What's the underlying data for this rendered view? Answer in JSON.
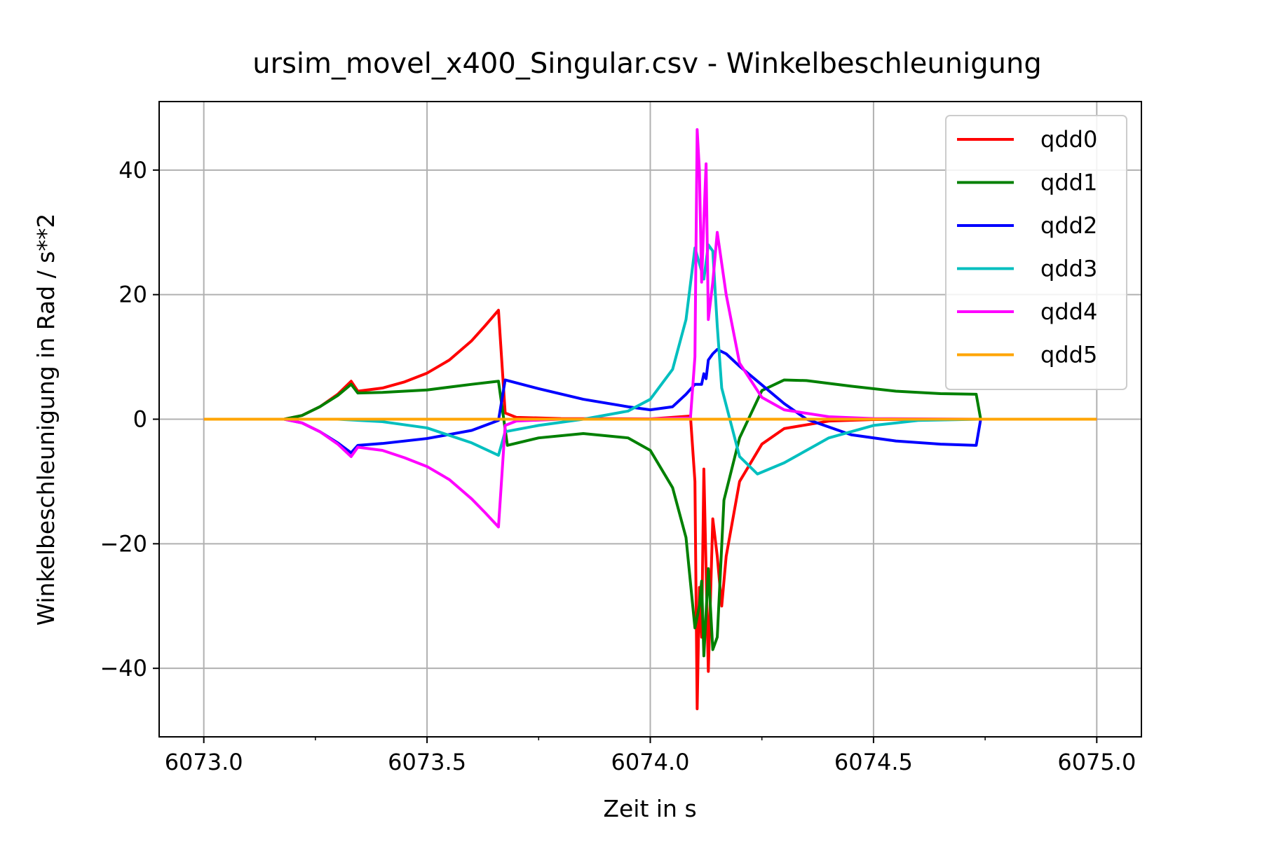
{
  "chart_data": {
    "type": "line",
    "title": "ursim_movel_x400_Singular.csv - Winkelbeschleunigung",
    "xlabel": "Zeit in s",
    "ylabel": "Winkelbeschleunigung in Rad / s**2",
    "xlim": [
      6072.9,
      6075.1
    ],
    "ylim": [
      -51,
      51
    ],
    "x_ticks": [
      6073.0,
      6073.5,
      6074.0,
      6074.5,
      6075.0
    ],
    "x_tick_labels": [
      "6073.0",
      "6073.5",
      "6074.0",
      "6074.5",
      "6075.0"
    ],
    "x_minor_ticks": [
      6073.25,
      6073.75,
      6074.25,
      6074.75
    ],
    "y_ticks": [
      -40,
      -20,
      0,
      20,
      40
    ],
    "y_tick_labels": [
      "−40",
      "−20",
      "0",
      "20",
      "40"
    ],
    "grid": true,
    "legend_position": "top-right",
    "series": [
      {
        "name": "qdd0",
        "color": "#ff0000",
        "points": [
          [
            6073.0,
            0
          ],
          [
            6073.18,
            0
          ],
          [
            6073.22,
            0.6
          ],
          [
            6073.26,
            2
          ],
          [
            6073.3,
            4
          ],
          [
            6073.33,
            6.1
          ],
          [
            6073.345,
            4.5
          ],
          [
            6073.4,
            5
          ],
          [
            6073.45,
            6
          ],
          [
            6073.5,
            7.4
          ],
          [
            6073.55,
            9.5
          ],
          [
            6073.6,
            12.6
          ],
          [
            6073.63,
            15
          ],
          [
            6073.66,
            17.5
          ],
          [
            6073.675,
            1
          ],
          [
            6073.7,
            0.3
          ],
          [
            6073.8,
            0.1
          ],
          [
            6074.0,
            0.05
          ],
          [
            6074.09,
            0.5
          ],
          [
            6074.1,
            -10
          ],
          [
            6074.105,
            -46.5
          ],
          [
            6074.11,
            -27
          ],
          [
            6074.115,
            -35
          ],
          [
            6074.12,
            -8
          ],
          [
            6074.13,
            -40.5
          ],
          [
            6074.14,
            -16
          ],
          [
            6074.15,
            -22
          ],
          [
            6074.16,
            -30
          ],
          [
            6074.17,
            -22
          ],
          [
            6074.2,
            -10
          ],
          [
            6074.25,
            -4
          ],
          [
            6074.3,
            -1.5
          ],
          [
            6074.4,
            -0.3
          ],
          [
            6074.5,
            -0.05
          ],
          [
            6074.74,
            0
          ],
          [
            6075.0,
            0
          ]
        ]
      },
      {
        "name": "qdd1",
        "color": "#008000",
        "points": [
          [
            6073.0,
            0
          ],
          [
            6073.18,
            0
          ],
          [
            6073.22,
            0.6
          ],
          [
            6073.26,
            2
          ],
          [
            6073.3,
            3.8
          ],
          [
            6073.33,
            5.6
          ],
          [
            6073.345,
            4.2
          ],
          [
            6073.4,
            4.3
          ],
          [
            6073.5,
            4.7
          ],
          [
            6073.6,
            5.6
          ],
          [
            6073.66,
            6.1
          ],
          [
            6073.68,
            -4.2
          ],
          [
            6073.75,
            -3
          ],
          [
            6073.85,
            -2.3
          ],
          [
            6073.95,
            -3
          ],
          [
            6074.0,
            -5
          ],
          [
            6074.05,
            -11
          ],
          [
            6074.08,
            -19
          ],
          [
            6074.1,
            -33.5
          ],
          [
            6074.11,
            -30
          ],
          [
            6074.115,
            -26
          ],
          [
            6074.12,
            -38
          ],
          [
            6074.13,
            -24
          ],
          [
            6074.14,
            -37
          ],
          [
            6074.15,
            -35
          ],
          [
            6074.165,
            -13
          ],
          [
            6074.2,
            -3
          ],
          [
            6074.25,
            4.6
          ],
          [
            6074.3,
            6.3
          ],
          [
            6074.35,
            6.2
          ],
          [
            6074.45,
            5.3
          ],
          [
            6074.55,
            4.5
          ],
          [
            6074.65,
            4.1
          ],
          [
            6074.73,
            4.0
          ],
          [
            6074.74,
            0
          ],
          [
            6075.0,
            0
          ]
        ]
      },
      {
        "name": "qdd2",
        "color": "#0000ff",
        "points": [
          [
            6073.0,
            0
          ],
          [
            6073.18,
            0
          ],
          [
            6073.22,
            -0.6
          ],
          [
            6073.26,
            -2
          ],
          [
            6073.3,
            -3.8
          ],
          [
            6073.33,
            -5.4
          ],
          [
            6073.345,
            -4.2
          ],
          [
            6073.4,
            -3.9
          ],
          [
            6073.5,
            -3.1
          ],
          [
            6073.6,
            -1.8
          ],
          [
            6073.66,
            -0.2
          ],
          [
            6073.675,
            6.3
          ],
          [
            6073.75,
            4.9
          ],
          [
            6073.85,
            3.2
          ],
          [
            6073.95,
            2
          ],
          [
            6074.0,
            1.5
          ],
          [
            6074.05,
            2
          ],
          [
            6074.08,
            4
          ],
          [
            6074.1,
            5.6
          ],
          [
            6074.115,
            5.6
          ],
          [
            6074.12,
            7.3
          ],
          [
            6074.125,
            6.5
          ],
          [
            6074.13,
            9.5
          ],
          [
            6074.14,
            10.5
          ],
          [
            6074.15,
            11.2
          ],
          [
            6074.17,
            10.5
          ],
          [
            6074.2,
            8.5
          ],
          [
            6074.25,
            5.5
          ],
          [
            6074.3,
            2.5
          ],
          [
            6074.35,
            0
          ],
          [
            6074.45,
            -2.5
          ],
          [
            6074.55,
            -3.5
          ],
          [
            6074.65,
            -4
          ],
          [
            6074.73,
            -4.2
          ],
          [
            6074.74,
            0
          ],
          [
            6075.0,
            0
          ]
        ]
      },
      {
        "name": "qdd3",
        "color": "#00bfbf",
        "points": [
          [
            6073.0,
            0
          ],
          [
            6073.3,
            0
          ],
          [
            6073.4,
            -0.4
          ],
          [
            6073.5,
            -1.4
          ],
          [
            6073.6,
            -3.8
          ],
          [
            6073.66,
            -5.8
          ],
          [
            6073.675,
            -2
          ],
          [
            6073.75,
            -1
          ],
          [
            6073.85,
            0
          ],
          [
            6073.95,
            1.3
          ],
          [
            6074.0,
            3.2
          ],
          [
            6074.05,
            8
          ],
          [
            6074.08,
            16
          ],
          [
            6074.1,
            27.5
          ],
          [
            6074.11,
            25
          ],
          [
            6074.12,
            22.5
          ],
          [
            6074.13,
            28
          ],
          [
            6074.14,
            27
          ],
          [
            6074.15,
            15
          ],
          [
            6074.16,
            5
          ],
          [
            6074.2,
            -6
          ],
          [
            6074.24,
            -8.8
          ],
          [
            6074.3,
            -7
          ],
          [
            6074.4,
            -3
          ],
          [
            6074.5,
            -1
          ],
          [
            6074.6,
            -0.2
          ],
          [
            6074.74,
            0
          ],
          [
            6075.0,
            0
          ]
        ]
      },
      {
        "name": "qdd4",
        "color": "#ff00ff",
        "points": [
          [
            6073.0,
            0
          ],
          [
            6073.18,
            0
          ],
          [
            6073.22,
            -0.6
          ],
          [
            6073.26,
            -2
          ],
          [
            6073.3,
            -4
          ],
          [
            6073.33,
            -6
          ],
          [
            6073.345,
            -4.5
          ],
          [
            6073.4,
            -5
          ],
          [
            6073.45,
            -6.2
          ],
          [
            6073.5,
            -7.6
          ],
          [
            6073.55,
            -9.7
          ],
          [
            6073.6,
            -12.8
          ],
          [
            6073.63,
            -15
          ],
          [
            6073.66,
            -17.3
          ],
          [
            6073.675,
            -1
          ],
          [
            6073.7,
            -0.3
          ],
          [
            6073.8,
            0
          ],
          [
            6074.0,
            0.05
          ],
          [
            6074.09,
            0.2
          ],
          [
            6074.1,
            10
          ],
          [
            6074.105,
            46.5
          ],
          [
            6074.11,
            40
          ],
          [
            6074.115,
            22
          ],
          [
            6074.12,
            32
          ],
          [
            6074.125,
            41
          ],
          [
            6074.13,
            16
          ],
          [
            6074.14,
            22
          ],
          [
            6074.15,
            30
          ],
          [
            6074.17,
            20
          ],
          [
            6074.2,
            9
          ],
          [
            6074.25,
            3.5
          ],
          [
            6074.3,
            1.5
          ],
          [
            6074.4,
            0.4
          ],
          [
            6074.5,
            0.1
          ],
          [
            6074.74,
            0
          ],
          [
            6075.0,
            0
          ]
        ]
      },
      {
        "name": "qdd5",
        "color": "#ffa500",
        "points": [
          [
            6073.0,
            0
          ],
          [
            6075.0,
            0
          ]
        ]
      }
    ]
  }
}
